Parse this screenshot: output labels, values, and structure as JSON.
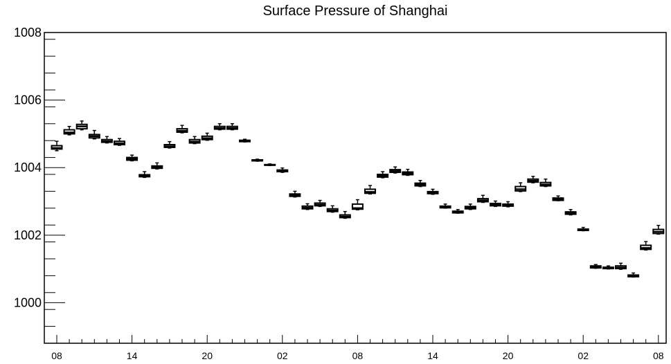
{
  "chart_data": {
    "type": "box",
    "title": "Surface Pressure of Shanghai",
    "xlabel": "",
    "ylabel": "",
    "ylim": [
      998.8,
      1008
    ],
    "grid": false,
    "y_ticks": [
      {
        "value": 1000,
        "label": "1000"
      },
      {
        "value": 1002,
        "label": "1002"
      },
      {
        "value": 1004,
        "label": "1004"
      },
      {
        "value": 1006,
        "label": "1006"
      },
      {
        "value": 1008,
        "label": "1008"
      }
    ],
    "x_ticks": [
      {
        "index": 0,
        "label": "08"
      },
      {
        "index": 6,
        "label": "14"
      },
      {
        "index": 12,
        "label": "20"
      },
      {
        "index": 18,
        "label": "02"
      },
      {
        "index": 24,
        "label": "08"
      },
      {
        "index": 30,
        "label": "14"
      },
      {
        "index": 36,
        "label": "20"
      },
      {
        "index": 42,
        "label": "02"
      },
      {
        "index": 48,
        "label": "08"
      }
    ],
    "boxes": [
      {
        "min": 1004.5,
        "q1": 1004.55,
        "median": 1004.58,
        "q3": 1004.65,
        "max": 1004.78
      },
      {
        "min": 1004.97,
        "q1": 1005.0,
        "median": 1005.04,
        "q3": 1005.12,
        "max": 1005.22
      },
      {
        "min": 1005.12,
        "q1": 1005.15,
        "median": 1005.22,
        "q3": 1005.28,
        "max": 1005.38
      },
      {
        "min": 1004.85,
        "q1": 1004.88,
        "median": 1004.93,
        "q3": 1004.98,
        "max": 1005.1
      },
      {
        "min": 1004.73,
        "q1": 1004.75,
        "median": 1004.78,
        "q3": 1004.83,
        "max": 1004.92
      },
      {
        "min": 1004.66,
        "q1": 1004.68,
        "median": 1004.72,
        "q3": 1004.78,
        "max": 1004.86
      },
      {
        "min": 1004.2,
        "q1": 1004.22,
        "median": 1004.26,
        "q3": 1004.3,
        "max": 1004.37
      },
      {
        "min": 1003.71,
        "q1": 1003.73,
        "median": 1003.76,
        "q3": 1003.79,
        "max": 1003.88
      },
      {
        "min": 1003.96,
        "q1": 1003.98,
        "median": 1004.01,
        "q3": 1004.05,
        "max": 1004.14
      },
      {
        "min": 1004.58,
        "q1": 1004.6,
        "median": 1004.63,
        "q3": 1004.68,
        "max": 1004.77
      },
      {
        "min": 1005.03,
        "q1": 1005.05,
        "median": 1005.09,
        "q3": 1005.15,
        "max": 1005.25
      },
      {
        "min": 1004.71,
        "q1": 1004.73,
        "median": 1004.77,
        "q3": 1004.83,
        "max": 1004.92
      },
      {
        "min": 1004.81,
        "q1": 1004.83,
        "median": 1004.87,
        "q3": 1004.93,
        "max": 1005.02
      },
      {
        "min": 1005.12,
        "q1": 1005.14,
        "median": 1005.17,
        "q3": 1005.22,
        "max": 1005.3
      },
      {
        "min": 1005.12,
        "q1": 1005.14,
        "median": 1005.17,
        "q3": 1005.22,
        "max": 1005.3
      },
      {
        "min": 1004.76,
        "q1": 1004.77,
        "median": 1004.79,
        "q3": 1004.81,
        "max": 1004.84
      },
      {
        "min": 1004.19,
        "q1": 1004.2,
        "median": 1004.22,
        "q3": 1004.23,
        "max": 1004.25
      },
      {
        "min": 1004.06,
        "q1": 1004.07,
        "median": 1004.08,
        "q3": 1004.09,
        "max": 1004.11
      },
      {
        "min": 1003.86,
        "q1": 1003.88,
        "median": 1003.9,
        "q3": 1003.93,
        "max": 1003.99
      },
      {
        "min": 1003.13,
        "q1": 1003.15,
        "median": 1003.18,
        "q3": 1003.22,
        "max": 1003.3
      },
      {
        "min": 1002.76,
        "q1": 1002.78,
        "median": 1002.81,
        "q3": 1002.86,
        "max": 1002.93
      },
      {
        "min": 1002.85,
        "q1": 1002.87,
        "median": 1002.9,
        "q3": 1002.95,
        "max": 1003.03
      },
      {
        "min": 1002.68,
        "q1": 1002.7,
        "median": 1002.73,
        "q3": 1002.78,
        "max": 1002.87
      },
      {
        "min": 1002.5,
        "q1": 1002.52,
        "median": 1002.55,
        "q3": 1002.6,
        "max": 1002.7
      },
      {
        "min": 1002.75,
        "q1": 1002.77,
        "median": 1002.8,
        "q3": 1002.92,
        "max": 1003.05
      },
      {
        "min": 1003.22,
        "q1": 1003.24,
        "median": 1003.28,
        "q3": 1003.36,
        "max": 1003.47
      },
      {
        "min": 1003.7,
        "q1": 1003.72,
        "median": 1003.76,
        "q3": 1003.8,
        "max": 1003.88
      },
      {
        "min": 1003.84,
        "q1": 1003.86,
        "median": 1003.9,
        "q3": 1003.94,
        "max": 1004.02
      },
      {
        "min": 1003.77,
        "q1": 1003.79,
        "median": 1003.83,
        "q3": 1003.87,
        "max": 1003.95
      },
      {
        "min": 1003.44,
        "q1": 1003.46,
        "median": 1003.5,
        "q3": 1003.54,
        "max": 1003.62
      },
      {
        "min": 1003.21,
        "q1": 1003.23,
        "median": 1003.26,
        "q3": 1003.29,
        "max": 1003.36
      },
      {
        "min": 1002.8,
        "q1": 1002.81,
        "median": 1002.83,
        "q3": 1002.86,
        "max": 1002.92
      },
      {
        "min": 1002.65,
        "q1": 1002.66,
        "median": 1002.68,
        "q3": 1002.71,
        "max": 1002.76
      },
      {
        "min": 1002.76,
        "q1": 1002.78,
        "median": 1002.81,
        "q3": 1002.85,
        "max": 1002.92
      },
      {
        "min": 1002.97,
        "q1": 1002.99,
        "median": 1003.03,
        "q3": 1003.08,
        "max": 1003.18
      },
      {
        "min": 1002.85,
        "q1": 1002.87,
        "median": 1002.9,
        "q3": 1002.94,
        "max": 1003.01
      },
      {
        "min": 1002.84,
        "q1": 1002.86,
        "median": 1002.88,
        "q3": 1002.92,
        "max": 1002.99
      },
      {
        "min": 1003.29,
        "q1": 1003.31,
        "median": 1003.36,
        "q3": 1003.44,
        "max": 1003.55
      },
      {
        "min": 1003.55,
        "q1": 1003.57,
        "median": 1003.61,
        "q3": 1003.66,
        "max": 1003.74
      },
      {
        "min": 1003.44,
        "q1": 1003.46,
        "median": 1003.5,
        "q3": 1003.56,
        "max": 1003.66
      },
      {
        "min": 1003.02,
        "q1": 1003.03,
        "median": 1003.06,
        "q3": 1003.1,
        "max": 1003.16
      },
      {
        "min": 1002.6,
        "q1": 1002.62,
        "median": 1002.65,
        "q3": 1002.69,
        "max": 1002.76
      },
      {
        "min": 1002.13,
        "q1": 1002.14,
        "median": 1002.16,
        "q3": 1002.18,
        "max": 1002.23
      },
      {
        "min": 1001.02,
        "q1": 1001.03,
        "median": 1001.06,
        "q3": 1001.09,
        "max": 1001.13
      },
      {
        "min": 1001.0,
        "q1": 1001.01,
        "median": 1001.03,
        "q3": 1001.05,
        "max": 1001.09
      },
      {
        "min": 1000.99,
        "q1": 1001.01,
        "median": 1001.04,
        "q3": 1001.09,
        "max": 1001.17
      },
      {
        "min": 1000.76,
        "q1": 1000.77,
        "median": 1000.79,
        "q3": 1000.82,
        "max": 1000.88
      },
      {
        "min": 1001.56,
        "q1": 1001.58,
        "median": 1001.62,
        "q3": 1001.7,
        "max": 1001.81
      },
      {
        "min": 1002.03,
        "q1": 1002.05,
        "median": 1002.1,
        "q3": 1002.17,
        "max": 1002.29
      }
    ]
  }
}
